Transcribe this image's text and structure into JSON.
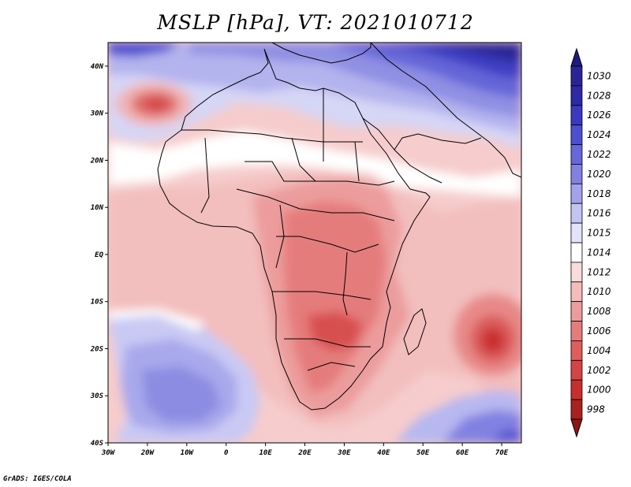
{
  "title": "MSLP [hPa], VT: 2021010712",
  "credit": "GrADS: IGES/COLA",
  "map": {
    "variable": "MSLP",
    "units": "hPa",
    "valid_time": "2021010712",
    "lon_range": [
      -30,
      75
    ],
    "lat_range": [
      -40,
      45
    ],
    "lon_ticks": [
      {
        "v": -30,
        "label": "30W"
      },
      {
        "v": -20,
        "label": "20W"
      },
      {
        "v": -10,
        "label": "10W"
      },
      {
        "v": 0,
        "label": "0"
      },
      {
        "v": 10,
        "label": "10E"
      },
      {
        "v": 20,
        "label": "20E"
      },
      {
        "v": 30,
        "label": "30E"
      },
      {
        "v": 40,
        "label": "40E"
      },
      {
        "v": 50,
        "label": "50E"
      },
      {
        "v": 60,
        "label": "60E"
      },
      {
        "v": 70,
        "label": "70E"
      }
    ],
    "lat_ticks": [
      {
        "v": 40,
        "label": "40N"
      },
      {
        "v": 30,
        "label": "30N"
      },
      {
        "v": 20,
        "label": "20N"
      },
      {
        "v": 10,
        "label": "10N"
      },
      {
        "v": 0,
        "label": "EQ"
      },
      {
        "v": -10,
        "label": "10S"
      },
      {
        "v": -20,
        "label": "20S"
      },
      {
        "v": -30,
        "label": "30S"
      },
      {
        "v": -40,
        "label": "40S"
      }
    ]
  },
  "colorbar": {
    "levels": [
      {
        "label": "1030",
        "color": "#2a2596"
      },
      {
        "label": "1028",
        "color": "#2d2aa8"
      },
      {
        "label": "1026",
        "color": "#3a39c0"
      },
      {
        "label": "1024",
        "color": "#4e4ed0"
      },
      {
        "label": "1022",
        "color": "#6767da"
      },
      {
        "label": "1020",
        "color": "#8181e2"
      },
      {
        "label": "1018",
        "color": "#a2a2ec"
      },
      {
        "label": "1016",
        "color": "#c4c4f4"
      },
      {
        "label": "1015",
        "color": "#e2e2fa"
      },
      {
        "label": "1014",
        "color": "#ffffff"
      },
      {
        "label": "1012",
        "color": "#fadcdc"
      },
      {
        "label": "1010",
        "color": "#f4bcbc"
      },
      {
        "label": "1008",
        "color": "#ec9c9c"
      },
      {
        "label": "1006",
        "color": "#e57c7c"
      },
      {
        "label": "1004",
        "color": "#de5e5e"
      },
      {
        "label": "1002",
        "color": "#d44444"
      },
      {
        "label": "1000",
        "color": "#c82e2e"
      },
      {
        "label": "998",
        "color": "#ab2020"
      }
    ],
    "top_color": "#1e1a80",
    "bottom_color": "#8e1414"
  }
}
